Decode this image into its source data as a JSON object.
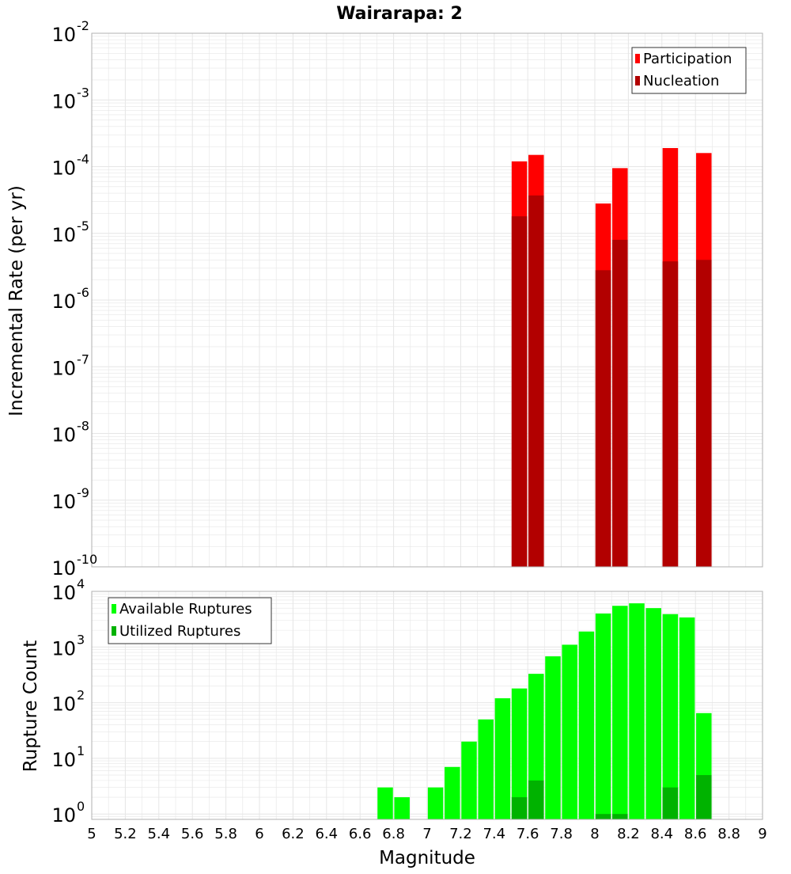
{
  "title": "Wairarapa: 2",
  "colors": {
    "participation": "#ff0000",
    "nucleation": "#b20000",
    "available": "#00ff00",
    "utilized": "#00b200",
    "grid": "#e6e6e6",
    "frame": "#b0b0b0"
  },
  "chart_data": [
    {
      "type": "bar",
      "panel": "top",
      "ylabel": "Incremental Rate (per yr)",
      "yscale": "log",
      "ylim": [
        1e-10,
        0.01
      ],
      "ytick_exponents": [
        "-2",
        "-3",
        "-4",
        "-5",
        "-6",
        "-7",
        "-8",
        "-9",
        "-10"
      ],
      "xlim": [
        5,
        9
      ],
      "bin_width": 0.1,
      "legend": {
        "position": "top-right",
        "entries": [
          "Participation",
          "Nucleation"
        ]
      },
      "series": [
        {
          "name": "Participation",
          "x": [
            7.55,
            7.65,
            8.05,
            8.15,
            8.45,
            8.65
          ],
          "values": [
            0.00012,
            0.00015,
            2.8e-05,
            9.5e-05,
            0.00019,
            0.00016
          ]
        },
        {
          "name": "Nucleation",
          "x": [
            7.55,
            7.65,
            8.05,
            8.15,
            8.45,
            8.65
          ],
          "values": [
            1.8e-05,
            3.7e-05,
            2.8e-06,
            8e-06,
            3.8e-06,
            4e-06
          ]
        }
      ]
    },
    {
      "type": "bar",
      "panel": "bottom",
      "xlabel": "Magnitude",
      "ylabel": "Rupture Count",
      "yscale": "log",
      "ylim": [
        0.8,
        10000
      ],
      "ytick_exponents": [
        "4",
        "3",
        "2",
        "1",
        "0"
      ],
      "xlim": [
        5,
        9
      ],
      "xticks": [
        "5",
        "5.2",
        "5.4",
        "5.6",
        "5.8",
        "6",
        "6.2",
        "6.4",
        "6.6",
        "6.8",
        "7",
        "7.2",
        "7.4",
        "7.6",
        "7.8",
        "8",
        "8.2",
        "8.4",
        "8.6",
        "8.8",
        "9"
      ],
      "bin_width": 0.1,
      "legend": {
        "position": "top-left",
        "entries": [
          "Available Ruptures",
          "Utilized Ruptures"
        ]
      },
      "series": [
        {
          "name": "Available Ruptures",
          "x": [
            6.75,
            6.85,
            7.05,
            7.15,
            7.25,
            7.35,
            7.45,
            7.55,
            7.65,
            7.75,
            7.85,
            7.95,
            8.05,
            8.15,
            8.25,
            8.35,
            8.45,
            8.55,
            8.65
          ],
          "values": [
            3,
            2,
            3,
            7,
            20,
            50,
            120,
            180,
            330,
            680,
            1100,
            1900,
            4000,
            5500,
            6100,
            5000,
            3900,
            3400,
            65
          ]
        },
        {
          "name": "Utilized Ruptures",
          "x": [
            7.55,
            7.65,
            8.05,
            8.15,
            8.45,
            8.65
          ],
          "values": [
            2,
            4,
            1,
            1,
            3,
            5
          ]
        }
      ]
    }
  ]
}
